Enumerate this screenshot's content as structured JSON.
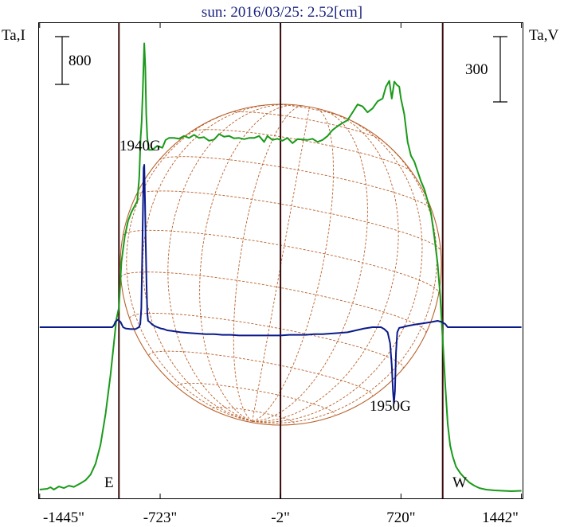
{
  "chart_data": {
    "type": "line",
    "title": "sun: 2016/03/25: 2.52[cm]",
    "left_axis_label": "Ta,I",
    "right_axis_label": "Ta,V",
    "left_scale_bar": "800",
    "right_scale_bar": "300",
    "x_ticks": [
      "-1445\"",
      "-723\"",
      "-2\"",
      "720\"",
      "1442\""
    ],
    "x_tick_values": [
      -1445,
      -723,
      -2,
      720,
      1442
    ],
    "xlim": [
      -1445,
      1442
    ],
    "limb_labels": {
      "east": "E",
      "west": "W"
    },
    "vertical_lines_arcsec": [
      -970,
      -2,
      970
    ],
    "annotations": [
      {
        "text": "1940G",
        "x": -830
      },
      {
        "text": "1950G",
        "x": 680
      }
    ],
    "colors": {
      "intensity": "#1a9a1a",
      "polarization": "#0a1a8a",
      "disk": "#b8602a",
      "vertical": "#3a0a0a",
      "title": "#1a237e"
    },
    "series": [
      {
        "name": "I",
        "axis": "left",
        "points": [
          [
            -1445,
            8
          ],
          [
            -1400,
            10
          ],
          [
            -1380,
            14
          ],
          [
            -1360,
            8
          ],
          [
            -1330,
            16
          ],
          [
            -1300,
            12
          ],
          [
            -1270,
            18
          ],
          [
            -1240,
            15
          ],
          [
            -1200,
            24
          ],
          [
            -1170,
            32
          ],
          [
            -1140,
            46
          ],
          [
            -1110,
            74
          ],
          [
            -1080,
            122
          ],
          [
            -1050,
            200
          ],
          [
            -1020,
            300
          ],
          [
            -1000,
            380
          ],
          [
            -985,
            440
          ],
          [
            -970,
            470
          ],
          [
            -955,
            585
          ],
          [
            -935,
            650
          ],
          [
            -915,
            690
          ],
          [
            -895,
            712
          ],
          [
            -875,
            728
          ],
          [
            -860,
            740
          ],
          [
            -848,
            800
          ],
          [
            -840,
            900
          ],
          [
            -834,
            940
          ],
          [
            -828,
            1005
          ],
          [
            -822,
            1090
          ],
          [
            -818,
            1140
          ],
          [
            -812,
            1080
          ],
          [
            -806,
            960
          ],
          [
            -800,
            900
          ],
          [
            -790,
            870
          ],
          [
            -770,
            870
          ],
          [
            -740,
            880
          ],
          [
            -710,
            875
          ],
          [
            -690,
            895
          ],
          [
            -670,
            900
          ],
          [
            -640,
            900
          ],
          [
            -610,
            898
          ],
          [
            -580,
            905
          ],
          [
            -550,
            900
          ],
          [
            -520,
            908
          ],
          [
            -490,
            900
          ],
          [
            -460,
            902
          ],
          [
            -430,
            893
          ],
          [
            -400,
            896
          ],
          [
            -370,
            910
          ],
          [
            -340,
            903
          ],
          [
            -310,
            905
          ],
          [
            -280,
            899
          ],
          [
            -250,
            900
          ],
          [
            -220,
            897
          ],
          [
            -190,
            900
          ],
          [
            -160,
            900
          ],
          [
            -130,
            905
          ],
          [
            -100,
            890
          ],
          [
            -80,
            905
          ],
          [
            -50,
            895
          ],
          [
            -20,
            898
          ],
          [
            10,
            893
          ],
          [
            40,
            900
          ],
          [
            70,
            887
          ],
          [
            100,
            897
          ],
          [
            130,
            896
          ],
          [
            160,
            895
          ],
          [
            190,
            898
          ],
          [
            220,
            890
          ],
          [
            250,
            895
          ],
          [
            280,
            905
          ],
          [
            310,
            920
          ],
          [
            340,
            930
          ],
          [
            370,
            938
          ],
          [
            400,
            945
          ],
          [
            430,
            965
          ],
          [
            460,
            985
          ],
          [
            490,
            980
          ],
          [
            520,
            965
          ],
          [
            550,
            975
          ],
          [
            580,
            993
          ],
          [
            610,
            1000
          ],
          [
            630,
            1030
          ],
          [
            650,
            1045
          ],
          [
            665,
            1000
          ],
          [
            680,
            1043
          ],
          [
            695,
            1035
          ],
          [
            710,
            1030
          ],
          [
            720,
            1000
          ],
          [
            740,
            960
          ],
          [
            760,
            890
          ],
          [
            780,
            855
          ],
          [
            800,
            840
          ],
          [
            820,
            815
          ],
          [
            840,
            790
          ],
          [
            860,
            770
          ],
          [
            880,
            740
          ],
          [
            900,
            710
          ],
          [
            920,
            650
          ],
          [
            940,
            580
          ],
          [
            955,
            500
          ],
          [
            970,
            390
          ],
          [
            985,
            275
          ],
          [
            1000,
            175
          ],
          [
            1015,
            120
          ],
          [
            1030,
            92
          ],
          [
            1050,
            66
          ],
          [
            1075,
            50
          ],
          [
            1100,
            38
          ],
          [
            1130,
            26
          ],
          [
            1160,
            18
          ],
          [
            1190,
            12
          ],
          [
            1230,
            8
          ],
          [
            1280,
            6
          ],
          [
            1330,
            5
          ],
          [
            1380,
            4
          ],
          [
            1442,
            5
          ]
        ]
      },
      {
        "name": "V",
        "axis": "right",
        "points": [
          [
            -1445,
            0
          ],
          [
            -1100,
            0
          ],
          [
            -1010,
            0
          ],
          [
            -1000,
            3
          ],
          [
            -990,
            9
          ],
          [
            -975,
            12
          ],
          [
            -960,
            8
          ],
          [
            -945,
            0
          ],
          [
            -930,
            -2
          ],
          [
            -900,
            -3
          ],
          [
            -870,
            -3
          ],
          [
            -850,
            0
          ],
          [
            -842,
            5
          ],
          [
            -836,
            30
          ],
          [
            -830,
            115
          ],
          [
            -826,
            190
          ],
          [
            -822,
            250
          ],
          [
            -818,
            255
          ],
          [
            -814,
            200
          ],
          [
            -810,
            140
          ],
          [
            -805,
            70
          ],
          [
            -800,
            22
          ],
          [
            -795,
            10
          ],
          [
            -785,
            8
          ],
          [
            -770,
            4
          ],
          [
            -750,
            1
          ],
          [
            -720,
            -2
          ],
          [
            -700,
            -3
          ],
          [
            -680,
            -5
          ],
          [
            -650,
            -6
          ],
          [
            -600,
            -8
          ],
          [
            -550,
            -9
          ],
          [
            -500,
            -10
          ],
          [
            -450,
            -11
          ],
          [
            -400,
            -11
          ],
          [
            -350,
            -12
          ],
          [
            -300,
            -12
          ],
          [
            -250,
            -13
          ],
          [
            -200,
            -13
          ],
          [
            -150,
            -13
          ],
          [
            -100,
            -13
          ],
          [
            -50,
            -13
          ],
          [
            0,
            -13
          ],
          [
            50,
            -12
          ],
          [
            100,
            -12
          ],
          [
            150,
            -12
          ],
          [
            200,
            -11
          ],
          [
            250,
            -11
          ],
          [
            300,
            -10
          ],
          [
            350,
            -9
          ],
          [
            400,
            -8
          ],
          [
            450,
            -5
          ],
          [
            500,
            -2
          ],
          [
            550,
            0
          ],
          [
            600,
            0
          ],
          [
            620,
            -3
          ],
          [
            640,
            -8
          ],
          [
            655,
            -25
          ],
          [
            665,
            -60
          ],
          [
            672,
            -100
          ],
          [
            678,
            -120
          ],
          [
            684,
            -100
          ],
          [
            690,
            -40
          ],
          [
            698,
            -8
          ],
          [
            710,
            -1
          ],
          [
            730,
            0
          ],
          [
            760,
            2
          ],
          [
            800,
            4
          ],
          [
            850,
            6
          ],
          [
            900,
            8
          ],
          [
            940,
            10
          ],
          [
            965,
            8
          ],
          [
            985,
            5
          ],
          [
            1000,
            0
          ],
          [
            1050,
            0
          ],
          [
            1442,
            0
          ]
        ]
      }
    ]
  }
}
